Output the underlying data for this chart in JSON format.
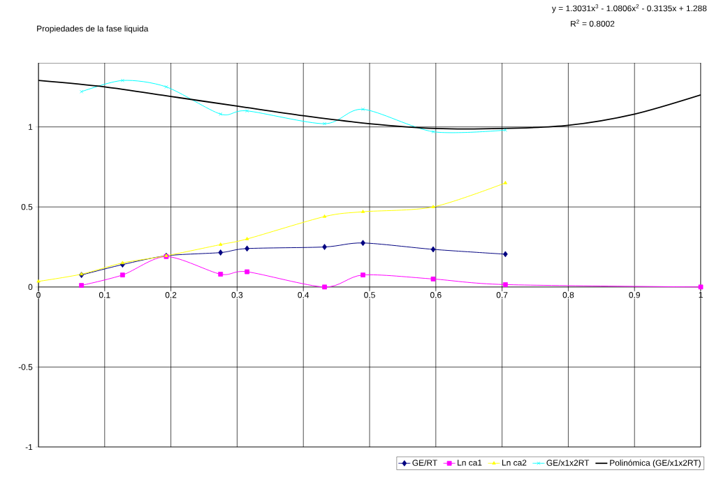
{
  "chart_data": {
    "type": "line",
    "title": "Propiedades de la fase liquida",
    "annotations": [
      "y = 1.3031x$^{3}$ - 1.0806x$^{2}$ - 0.3135x + 1.288",
      "R$^{2}$ = 0.8002"
    ],
    "series": [
      {
        "name": "GE/RT",
        "color": "#000080",
        "marker": "diamond",
        "x": [
          0.065,
          0.127,
          0.193,
          0.275,
          0.315,
          0.432,
          0.49,
          0.596,
          0.705
        ],
        "values": [
          0.075,
          0.14,
          0.195,
          0.215,
          0.24,
          0.25,
          0.275,
          0.235,
          0.205
        ]
      },
      {
        "name": "Ln ca1",
        "color": "#ff00ff",
        "marker": "square",
        "x": [
          0.065,
          0.127,
          0.193,
          0.275,
          0.315,
          0.432,
          0.49,
          0.596,
          0.705,
          1
        ],
        "values": [
          0.01,
          0.075,
          0.19,
          0.08,
          0.095,
          0,
          0.075,
          0.05,
          0.015,
          0
        ]
      },
      {
        "name": "Ln ca2",
        "color": "#ffff00",
        "marker": "triangle",
        "x": [
          0,
          0.065,
          0.127,
          0.193,
          0.275,
          0.315,
          0.432,
          0.49,
          0.596,
          0.705
        ],
        "values": [
          0.035,
          0.08,
          0.15,
          0.195,
          0.265,
          0.3,
          0.44,
          0.47,
          0.5,
          0.65
        ]
      },
      {
        "name": "GE/x1x2RT",
        "color": "#00ffff",
        "marker": "cross",
        "x": [
          0.065,
          0.127,
          0.193,
          0.275,
          0.315,
          0.432,
          0.49,
          0.596,
          0.705
        ],
        "values": [
          1.22,
          1.29,
          1.25,
          1.08,
          1.1,
          1.02,
          1.11,
          0.97,
          0.98
        ]
      },
      {
        "name": "Polinómica (GE/x1x2RT)",
        "color": "#000000",
        "marker": "none",
        "x": [
          0,
          0.1,
          0.2,
          0.3,
          0.4,
          0.5,
          0.6,
          0.7,
          0.8,
          0.9,
          1
        ],
        "values": [
          1.29,
          1.25,
          1.19,
          1.13,
          1.07,
          1.02,
          0.99,
          0.99,
          1.01,
          1.08,
          1.2
        ]
      }
    ],
    "xlim": [
      0,
      1
    ],
    "xticks": [
      0,
      0.1,
      0.2,
      0.3,
      0.4,
      0.5,
      0.6,
      0.7,
      0.8,
      0.9,
      1
    ],
    "ylim": [
      -1,
      1.4
    ],
    "yticks": [
      -1,
      -0.5,
      0,
      0.5,
      1
    ],
    "grid": true,
    "legend": "bottom right",
    "line_style": "solid"
  }
}
